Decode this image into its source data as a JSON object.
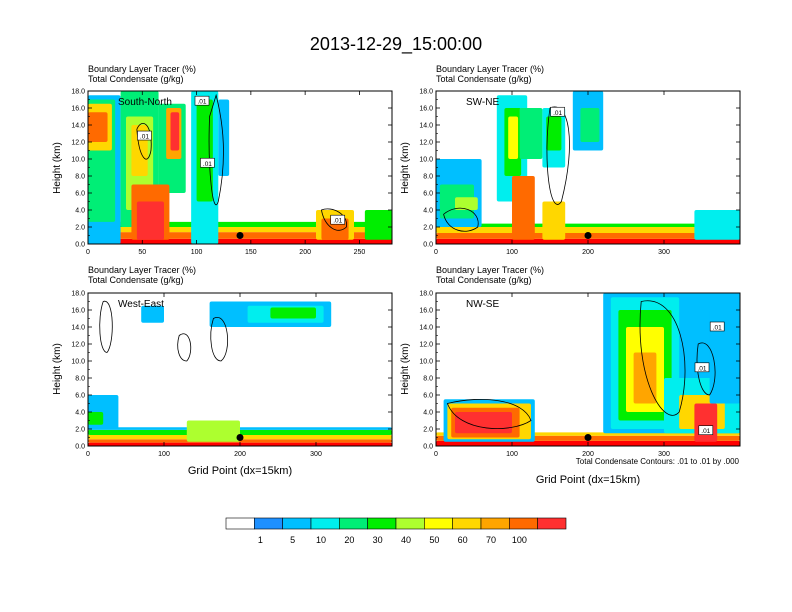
{
  "title": "2013-12-29_15:00:00",
  "colors": {
    "levels": [
      "#ffffff",
      "#1e90ff",
      "#00bfff",
      "#00eeee",
      "#00ee76",
      "#00ee00",
      "#adff2f",
      "#ffff00",
      "#ffd700",
      "#ffa500",
      "#ff6a00",
      "#ff3030",
      "#ff0000"
    ]
  },
  "colorbar": {
    "labels": [
      "1",
      "5",
      "10",
      "20",
      "30",
      "40",
      "50",
      "60",
      "70",
      "100"
    ]
  },
  "footnote": "Total Condensate Contours: .01 to .01 by .000",
  "chart_data": [
    {
      "type": "heatmap",
      "subtitle": "Boundary Layer Tracer   (%)",
      "subtitle2": "Total Condensate   (g/kg)",
      "panel_label": "South-North",
      "ylabel": "Height (km)",
      "xlabel": "",
      "xlim": [
        0,
        280
      ],
      "ylim": [
        0,
        18
      ],
      "xticks": [
        0,
        50,
        100,
        150,
        200,
        250
      ],
      "xtick_labels": [
        "0",
        "50",
        "100",
        "150",
        "200",
        "250"
      ],
      "yticks": [
        0,
        2,
        4,
        6,
        8,
        10,
        12,
        14,
        16,
        18
      ],
      "ytick_labels": [
        "0.0",
        "2.0",
        "4.0",
        "6.0",
        "8.0",
        "10.0",
        "12.0",
        "14.0",
        "16.0",
        "18.0"
      ],
      "marker": {
        "x": 140,
        "y": 1.0
      },
      "contour_labels": [
        {
          "text": ".01",
          "x": 105,
          "y": 16.8
        },
        {
          "text": ".01",
          "x": 52,
          "y": 12.7
        },
        {
          "text": ".01",
          "x": 110,
          "y": 9.5
        },
        {
          "text": ".01",
          "x": 230,
          "y": 2.8
        }
      ]
    },
    {
      "type": "heatmap",
      "subtitle": "Boundary Layer Tracer   (%)",
      "subtitle2": "Total Condensate   (g/kg)",
      "panel_label": "SW-NE",
      "ylabel": "Height (km)",
      "xlabel": "",
      "xlim": [
        0,
        400
      ],
      "ylim": [
        0,
        18
      ],
      "xticks": [
        0,
        100,
        200,
        300
      ],
      "xtick_labels": [
        "0",
        "100",
        "200",
        "300"
      ],
      "yticks": [
        0,
        2,
        4,
        6,
        8,
        10,
        12,
        14,
        16,
        18
      ],
      "ytick_labels": [
        "0.0",
        "2.0",
        "4.0",
        "6.0",
        "8.0",
        "10.0",
        "12.0",
        "14.0",
        "16.0",
        "18.0"
      ],
      "marker": {
        "x": 200,
        "y": 1.0
      },
      "contour_labels": [
        {
          "text": ".01",
          "x": 160,
          "y": 15.5
        }
      ]
    },
    {
      "type": "heatmap",
      "subtitle": "Boundary Layer Tracer   (%)",
      "subtitle2": "Total Condensate   (g/kg)",
      "panel_label": "West-East",
      "ylabel": "Height (km)",
      "xlabel": "Grid Point (dx=15km)",
      "xlim": [
        0,
        400
      ],
      "ylim": [
        0,
        18
      ],
      "xticks": [
        0,
        100,
        200,
        300
      ],
      "xtick_labels": [
        "0",
        "100",
        "200",
        "300"
      ],
      "yticks": [
        0,
        2,
        4,
        6,
        8,
        10,
        12,
        14,
        16,
        18
      ],
      "ytick_labels": [
        "0.0",
        "2.0",
        "4.0",
        "6.0",
        "8.0",
        "10.0",
        "12.0",
        "14.0",
        "16.0",
        "18.0"
      ],
      "marker": {
        "x": 200,
        "y": 1.0
      },
      "contour_labels": []
    },
    {
      "type": "heatmap",
      "subtitle": "",
      "subtitle2": "",
      "panel_label": "NW-SE",
      "ylabel": "Height (km)",
      "xlabel": "Grid Point (dx=15km)",
      "xlim": [
        0,
        400
      ],
      "ylim": [
        0,
        18
      ],
      "xticks": [
        0,
        100,
        200,
        300
      ],
      "xtick_labels": [
        "0",
        "100",
        "200",
        "300"
      ],
      "yticks": [
        0,
        2,
        4,
        6,
        8,
        10,
        12,
        14,
        16,
        18
      ],
      "ytick_labels": [
        "0.0",
        "2.0",
        "4.0",
        "6.0",
        "8.0",
        "10.0",
        "12.0",
        "14.0",
        "16.0",
        "18.0"
      ],
      "marker": {
        "x": 200,
        "y": 1.0
      },
      "contour_labels": [
        {
          "text": ".01",
          "x": 370,
          "y": 14.0
        },
        {
          "text": ".01",
          "x": 350,
          "y": 9.2
        },
        {
          "text": ".01",
          "x": 355,
          "y": 1.8
        }
      ]
    }
  ]
}
